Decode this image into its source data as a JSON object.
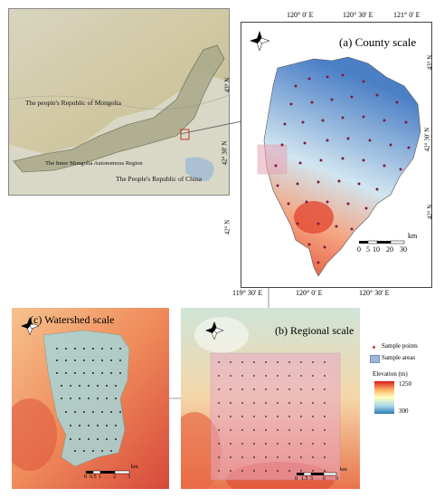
{
  "overview_map": {
    "label_mongolia": "The people's Republic of Mongolia",
    "label_inner_mongolia": "The Inner Mongolia Autonomous Region",
    "label_china": "The People's Republic of China"
  },
  "county_panel": {
    "title": "(a) County scale",
    "top_ticks": [
      "120° 0' E",
      "120° 30' E",
      "121° 0' E"
    ],
    "bottom_ticks": [
      "119° 30' E",
      "120° 0' E",
      "120° 30' E"
    ],
    "left_ticks": [
      "43° N",
      "42° 30' N",
      "42° N"
    ],
    "right_ticks": [
      "43° N",
      "42° 30' N",
      "42° N"
    ],
    "scalebar_labels": [
      "0",
      "5",
      "10",
      "20",
      "30"
    ],
    "scalebar_unit": "km"
  },
  "regional_panel": {
    "title": "(b) Regional scale",
    "scalebar_labels": [
      "0",
      "1.5",
      "3",
      "6",
      "9"
    ],
    "scalebar_unit": "km"
  },
  "watershed_panel": {
    "title": "(c) Watershed scale",
    "scalebar_labels": [
      "0",
      "0.5",
      "1",
      "2",
      "3"
    ],
    "scalebar_unit": "km"
  },
  "legend": {
    "sample_points": "Sample points",
    "sample_areas": "Sample areas",
    "elevation_title": "Elevation (m)",
    "elevation_max": "1250",
    "elevation_min": "300"
  },
  "compass": {
    "north_letter": "N",
    "south_letter": "S",
    "east_letter": "E",
    "west_letter": "W"
  },
  "colors": {
    "sample_point": "#c0392b",
    "sample_area": "#9fb4d9",
    "elev_high": "#d7191c",
    "elev_mid": "#ffffbf",
    "elev_low": "#2c7bb6"
  }
}
